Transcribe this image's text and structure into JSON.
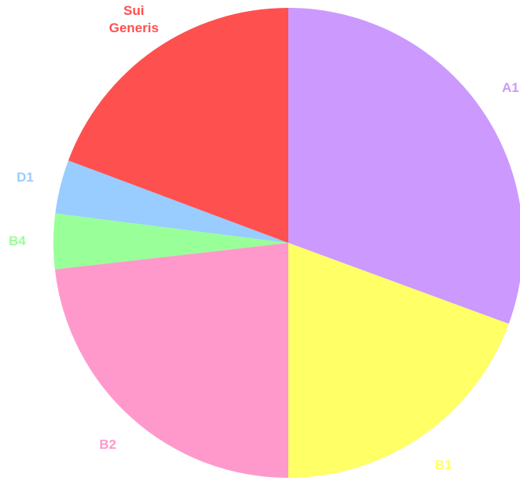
{
  "chart_data": {
    "type": "pie",
    "categories": [
      "A1",
      "B1",
      "B2",
      "B4",
      "D1",
      "Sui Generis"
    ],
    "values": [
      30.6,
      19.4,
      23.2,
      3.8,
      3.7,
      19.3
    ],
    "colors": [
      "#cc99ff",
      "#ffff66",
      "#ff99cc",
      "#99ff99",
      "#99ccff",
      "#ff5050"
    ]
  }
}
